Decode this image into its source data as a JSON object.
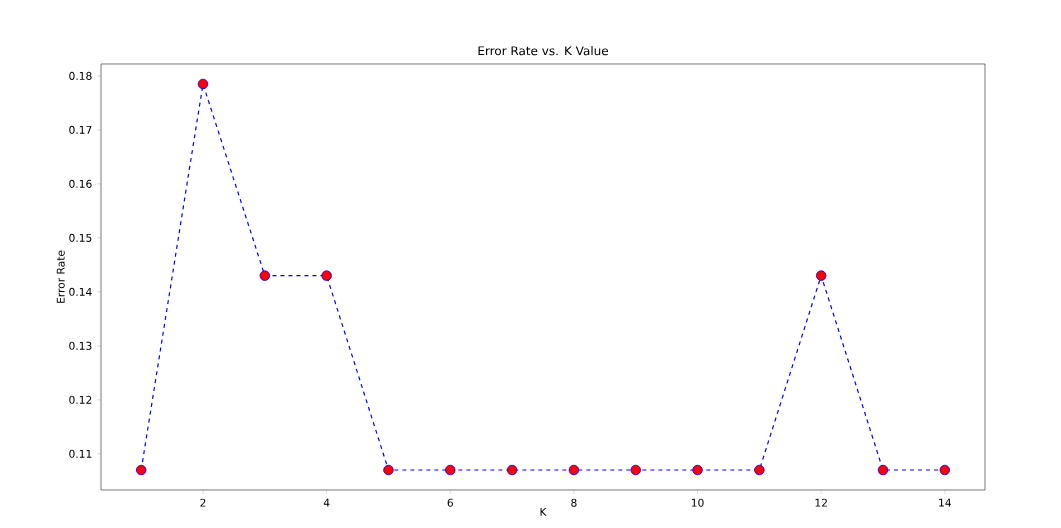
{
  "chart_data": {
    "type": "line",
    "title": "Error Rate vs. K Value",
    "xlabel": "K",
    "ylabel": "Error Rate",
    "x": [
      1,
      2,
      3,
      4,
      5,
      6,
      7,
      8,
      9,
      10,
      11,
      12,
      13,
      14
    ],
    "series": [
      {
        "color": "#0000ff",
        "values": [
          0.107,
          0.1785,
          0.143,
          0.143,
          0.107,
          0.107,
          0.107,
          0.107,
          0.107,
          0.107,
          0.107,
          0.143,
          0.107,
          0.107
        ]
      }
    ],
    "xlim": [
      0.35,
      14.65
    ],
    "ylim": [
      0.1033,
      0.1822
    ],
    "xticks": [
      2,
      4,
      6,
      8,
      10,
      12,
      14
    ],
    "yticks": [
      0.11,
      0.12,
      0.13,
      0.14,
      0.15,
      0.16,
      0.17,
      0.18
    ],
    "marker": "circle",
    "line_style": "dashed",
    "grid": false
  }
}
